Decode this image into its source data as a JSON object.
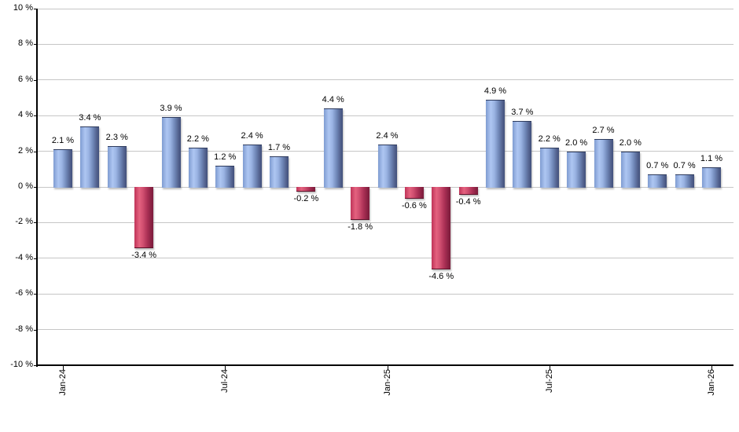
{
  "chart_data": {
    "type": "bar",
    "title": "",
    "xlabel": "",
    "ylabel": "",
    "n_bars": 25,
    "values": [
      2.1,
      3.4,
      2.3,
      -3.4,
      3.9,
      2.2,
      1.2,
      2.4,
      1.7,
      -0.2,
      4.4,
      -1.8,
      2.4,
      -0.6,
      -4.6,
      -0.4,
      4.9,
      3.7,
      2.2,
      2.0,
      2.7,
      2.0,
      0.7,
      0.7,
      1.1
    ],
    "bar_labels": [
      "2.1 %",
      "3.4 %",
      "2.3 %",
      "-3.4 %",
      "3.9 %",
      "2.2 %",
      "1.2 %",
      "2.4 %",
      "1.7 %",
      "-0.2 %",
      "4.4 %",
      "-1.8 %",
      "2.4 %",
      "-0.6 %",
      "-4.6 %",
      "-0.4 %",
      "4.9 %",
      "3.7 %",
      "2.2 %",
      "2.0 %",
      "2.7 %",
      "2.0 %",
      "0.7 %",
      "0.7 %",
      "1.1 %"
    ],
    "x_ticks": [
      {
        "bar_index": 0,
        "label": "Jan-24"
      },
      {
        "bar_index": 6,
        "label": "Jul-24"
      },
      {
        "bar_index": 12,
        "label": "Jan-25"
      },
      {
        "bar_index": 18,
        "label": "Jul-25"
      },
      {
        "bar_index": 24,
        "label": "Jan-26"
      }
    ],
    "y_ticks": [
      {
        "value": 10,
        "label": "10 %"
      },
      {
        "value": 8,
        "label": "8 %"
      },
      {
        "value": 6,
        "label": "6 %"
      },
      {
        "value": 4,
        "label": "4 %"
      },
      {
        "value": 2,
        "label": "2 %"
      },
      {
        "value": 0,
        "label": "0 %"
      },
      {
        "value": -2,
        "label": "-2 %"
      },
      {
        "value": -4,
        "label": "-4 %"
      },
      {
        "value": -6,
        "label": "-6 %"
      },
      {
        "value": -8,
        "label": "-8 %"
      },
      {
        "value": -10,
        "label": "-10 %"
      }
    ],
    "ylim": [
      -10,
      10
    ],
    "grid": "horizontal",
    "legend": "none",
    "colors": {
      "positive_bar": "#7f9cd1",
      "positive_bar_highlight": "#aec6f2",
      "positive_bar_dark": "#42517c",
      "negative_bar": "#c03459",
      "negative_bar_highlight": "#e4627f",
      "negative_bar_dark": "#7c1c3c",
      "gridline": "#c6c6c6",
      "axis": "#000000",
      "text": "#000000",
      "background": "#ffffff"
    }
  }
}
